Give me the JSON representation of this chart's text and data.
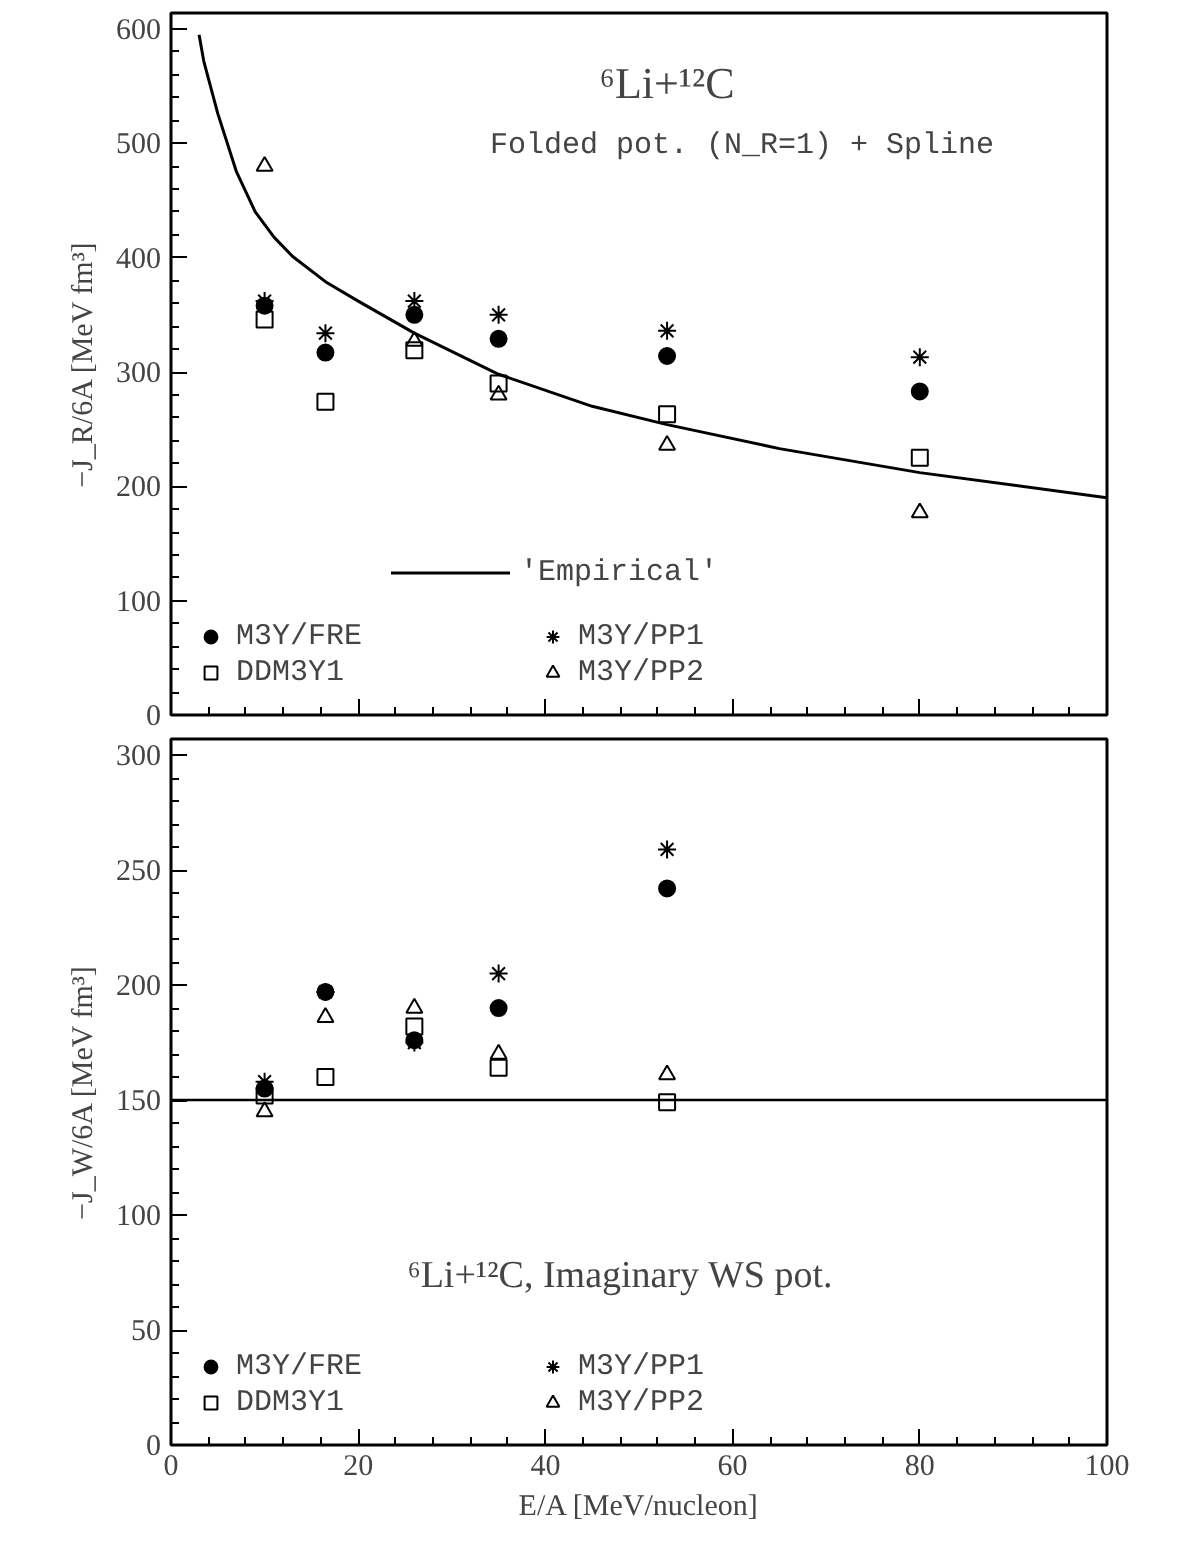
{
  "chart_data": [
    {
      "type": "scatter",
      "title": "⁶Li+¹²C",
      "subtitle": "Folded pot. (N_R=1) + Spline",
      "ylabel": "−J_R/6A [MeV fm³]",
      "x": [
        10,
        16.5,
        26,
        35,
        53,
        80
      ],
      "xlim": [
        0,
        100
      ],
      "xticks": [
        0,
        20,
        40,
        60,
        80,
        100
      ],
      "ylim": [
        0,
        614
      ],
      "yticks": [
        0,
        100,
        200,
        300,
        400,
        500,
        600
      ],
      "tick_labels": "y",
      "grid": false,
      "legend": "bottom",
      "series": [
        {
          "name": "'Empirical'",
          "type": "line",
          "color": "#000000",
          "line_style": "solid",
          "x": [
            3,
            3.5,
            5,
            7,
            9,
            11,
            13,
            16.5,
            20,
            26,
            35,
            45,
            53,
            65,
            80,
            100
          ],
          "values": [
            595,
            572,
            526,
            475,
            440,
            418,
            401,
            379,
            362,
            334,
            298,
            270,
            254,
            233,
            212,
            190
          ]
        },
        {
          "name": "M3Y/FRE",
          "color": "#000000",
          "marker": "circle",
          "values": [
            358,
            317,
            350,
            329,
            314,
            283
          ]
        },
        {
          "name": "M3Y/PP1",
          "color": "#000000",
          "marker": "cross",
          "values": [
            362,
            334,
            362,
            350,
            336,
            313
          ]
        },
        {
          "name": "DDM3Y1",
          "color": "#000000",
          "marker": "square",
          "values": [
            346,
            274,
            319,
            290,
            263,
            225
          ]
        },
        {
          "name": "M3Y/PP2",
          "color": "#000000",
          "marker": "triangle",
          "values": [
            480,
            null,
            327,
            280,
            236,
            177
          ]
        }
      ]
    },
    {
      "type": "scatter",
      "title": "⁶Li+¹²C, Imaginary WS pot.",
      "xlabel": "E/A [MeV/nucleon]",
      "ylabel": "−J_W/6A [MeV fm³]",
      "x": [
        10,
        16.5,
        26,
        35,
        53
      ],
      "xlim": [
        0,
        100
      ],
      "xticks": [
        0,
        20,
        40,
        60,
        80,
        100
      ],
      "ylim": [
        0,
        307
      ],
      "yticks": [
        0,
        50,
        100,
        150,
        200,
        250,
        300
      ],
      "grid": false,
      "legend": "bottom",
      "ref_lines": [
        {
          "axis": "y",
          "value": 150,
          "color": "#000000"
        }
      ],
      "series": [
        {
          "name": "M3Y/FRE",
          "color": "#000000",
          "marker": "circle",
          "values": [
            155,
            197,
            176,
            190,
            242
          ]
        },
        {
          "name": "M3Y/PP1",
          "color": "#000000",
          "marker": "cross",
          "values": [
            158,
            197,
            175,
            205,
            259
          ]
        },
        {
          "name": "DDM3Y1",
          "color": "#000000",
          "marker": "square",
          "values": [
            152,
            160,
            182,
            164,
            149
          ]
        },
        {
          "name": "M3Y/PP2",
          "color": "#000000",
          "marker": "triangle",
          "values": [
            145,
            186,
            190,
            170,
            161
          ]
        }
      ]
    }
  ]
}
